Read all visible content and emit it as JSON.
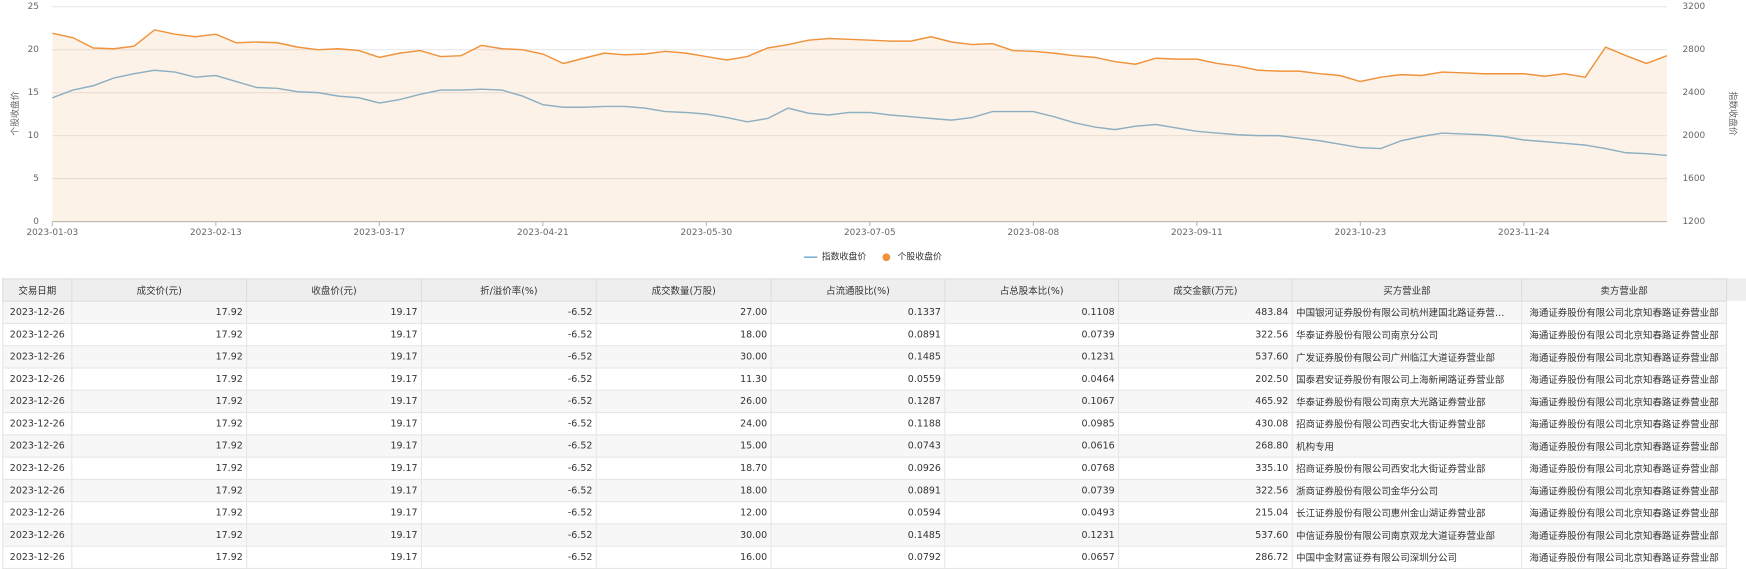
{
  "chart_data": {
    "type": "line",
    "y_label": "个股收盘价",
    "y2_label": "指数收盘价",
    "categories": [
      "2023-01-03",
      null,
      null,
      null,
      null,
      null,
      null,
      null,
      "2023-02-13",
      null,
      null,
      null,
      null,
      null,
      null,
      null,
      "2023-03-17",
      null,
      null,
      null,
      null,
      null,
      null,
      null,
      "2023-04-21",
      null,
      null,
      null,
      null,
      null,
      null,
      null,
      "2023-05-30",
      null,
      null,
      null,
      null,
      null,
      null,
      null,
      "2023-07-05",
      null,
      null,
      null,
      null,
      null,
      null,
      null,
      "2023-08-08",
      null,
      null,
      null,
      null,
      null,
      null,
      null,
      "2023-09-11",
      null,
      null,
      null,
      null,
      null,
      null,
      null,
      "2023-10-23",
      null,
      null,
      null,
      null,
      null,
      null,
      null,
      "2023-11-24",
      null,
      null,
      null,
      null,
      null,
      null,
      null
    ],
    "ylim": [
      0,
      25
    ],
    "yticks": [
      0,
      5,
      10,
      15,
      20,
      25
    ],
    "y2lim": [
      1200,
      3200
    ],
    "y2ticks": [
      1200,
      1600,
      2000,
      2400,
      2800,
      3200
    ],
    "grid": true,
    "legend": "bottom",
    "series": [
      {
        "name": "指数收盘价",
        "color": "#7fb3d5",
        "axis": "y2",
        "values": [
          2352,
          2424,
          2464,
          2536,
          2576,
          2608,
          2592,
          2544,
          2560,
          2504,
          2448,
          2440,
          2408,
          2400,
          2368,
          2352,
          2304,
          2336,
          2384,
          2424,
          2424,
          2432,
          2424,
          2368,
          2288,
          2264,
          2264,
          2272,
          2272,
          2256,
          2224,
          2216,
          2200,
          2168,
          2128,
          2160,
          2256,
          2208,
          2192,
          2216,
          2216,
          2192,
          2176,
          2160,
          2144,
          2168,
          2224,
          2224,
          2224,
          2176,
          2120,
          2080,
          2056,
          2088,
          2104,
          2072,
          2040,
          2024,
          2008,
          2000,
          2000,
          1976,
          1952,
          1920,
          1888,
          1880,
          1952,
          1992,
          2024,
          2016,
          2008,
          1992,
          1960,
          1944,
          1928,
          1912,
          1880,
          1840,
          1832,
          1816
        ]
      },
      {
        "name": "个股收盘价",
        "color": "#f0923a",
        "area": true,
        "values": [
          21.9,
          21.4,
          20.2,
          20.1,
          20.4,
          22.3,
          21.8,
          21.5,
          21.8,
          20.8,
          20.9,
          20.8,
          20.3,
          20,
          20.1,
          19.9,
          19.1,
          19.6,
          19.9,
          19.2,
          19.3,
          20.5,
          20.1,
          20,
          19.5,
          18.4,
          19,
          19.6,
          19.4,
          19.5,
          19.8,
          19.6,
          19.2,
          18.8,
          19.2,
          20.2,
          20.6,
          21.1,
          21.3,
          21.2,
          21.1,
          21,
          21,
          21.5,
          20.9,
          20.6,
          20.7,
          19.9,
          19.8,
          19.6,
          19.3,
          19.1,
          18.6,
          18.3,
          19,
          18.9,
          18.9,
          18.4,
          18.1,
          17.6,
          17.5,
          17.5,
          17.2,
          17,
          16.3,
          16.8,
          17.1,
          17,
          17.4,
          17.3,
          17.2,
          17.2,
          17.2,
          16.9,
          17.2,
          16.8,
          20.3,
          19.3,
          18.4,
          19.3
        ]
      }
    ]
  },
  "table": {
    "columns": [
      "交易日期",
      "成交价(元)",
      "收盘价(元)",
      "折/溢价率(%)",
      "成交数量(万股)",
      "占流通股比(%)",
      "占总股本比(%)",
      "成交金额(万元)",
      "买方营业部",
      "卖方营业部"
    ],
    "rows": [
      [
        "2023-12-26",
        "17.92",
        "19.17",
        "-6.52",
        "27.00",
        "0.1337",
        "0.1108",
        "483.84",
        "中国银河证券股份有限公司杭州建国北路证券营…",
        "海通证券股份有限公司北京知春路证券营业部"
      ],
      [
        "2023-12-26",
        "17.92",
        "19.17",
        "-6.52",
        "18.00",
        "0.0891",
        "0.0739",
        "322.56",
        "华泰证券股份有限公司南京分公司",
        "海通证券股份有限公司北京知春路证券营业部"
      ],
      [
        "2023-12-26",
        "17.92",
        "19.17",
        "-6.52",
        "30.00",
        "0.1485",
        "0.1231",
        "537.60",
        "广发证券股份有限公司广州临江大道证券营业部",
        "海通证券股份有限公司北京知春路证券营业部"
      ],
      [
        "2023-12-26",
        "17.92",
        "19.17",
        "-6.52",
        "11.30",
        "0.0559",
        "0.0464",
        "202.50",
        "国泰君安证券股份有限公司上海新闸路证券营业部",
        "海通证券股份有限公司北京知春路证券营业部"
      ],
      [
        "2023-12-26",
        "17.92",
        "19.17",
        "-6.52",
        "26.00",
        "0.1287",
        "0.1067",
        "465.92",
        "华泰证券股份有限公司南京大光路证券营业部",
        "海通证券股份有限公司北京知春路证券营业部"
      ],
      [
        "2023-12-26",
        "17.92",
        "19.17",
        "-6.52",
        "24.00",
        "0.1188",
        "0.0985",
        "430.08",
        "招商证券股份有限公司西安北大街证券营业部",
        "海通证券股份有限公司北京知春路证券营业部"
      ],
      [
        "2023-12-26",
        "17.92",
        "19.17",
        "-6.52",
        "15.00",
        "0.0743",
        "0.0616",
        "268.80",
        "机构专用",
        "海通证券股份有限公司北京知春路证券营业部"
      ],
      [
        "2023-12-26",
        "17.92",
        "19.17",
        "-6.52",
        "18.70",
        "0.0926",
        "0.0768",
        "335.10",
        "招商证券股份有限公司西安北大街证券营业部",
        "海通证券股份有限公司北京知春路证券营业部"
      ],
      [
        "2023-12-26",
        "17.92",
        "19.17",
        "-6.52",
        "18.00",
        "0.0891",
        "0.0739",
        "322.56",
        "浙商证券股份有限公司金华分公司",
        "海通证券股份有限公司北京知春路证券营业部"
      ],
      [
        "2023-12-26",
        "17.92",
        "19.17",
        "-6.52",
        "12.00",
        "0.0594",
        "0.0493",
        "215.04",
        "长江证券股份有限公司惠州金山湖证券营业部",
        "海通证券股份有限公司北京知春路证券营业部"
      ],
      [
        "2023-12-26",
        "17.92",
        "19.17",
        "-6.52",
        "30.00",
        "0.1485",
        "0.1231",
        "537.60",
        "中信证券股份有限公司南京双龙大道证券营业部",
        "海通证券股份有限公司北京知春路证券营业部"
      ],
      [
        "2023-12-26",
        "17.92",
        "19.17",
        "-6.52",
        "16.00",
        "0.0792",
        "0.0657",
        "286.72",
        "中国中金财富证券有限公司深圳分公司",
        "海通证券股份有限公司北京知春路证券营业部"
      ]
    ]
  }
}
